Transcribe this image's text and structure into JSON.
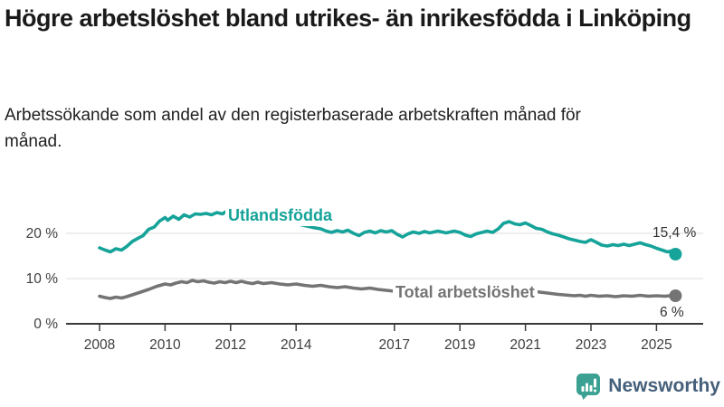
{
  "title": "Högre arbetslöshet bland utrikes- än inrikesfödda i Linköping",
  "subtitle": "Arbetssökande som andel av den registerbaserade arbetskraften månad för månad.",
  "branding": {
    "logo_text": "Newsworthy",
    "logo_icon": "bar-chart-speech-bubble-icon"
  },
  "colors": {
    "foreign_born_line": "#16a399",
    "total_line": "#747474",
    "grid": "#dcdcdc",
    "axis": "#3a3a3a",
    "tick_text": "#3d3d3d",
    "end_label_text": "#333333",
    "logo_teal": "#3ba193",
    "logo_text_color": "#45607b"
  },
  "chart_data": {
    "type": "line",
    "title": "Högre arbetslöshet bland utrikes- än inrikesfödda i Linköping",
    "xlabel": "",
    "ylabel": "",
    "grid": "horizontal",
    "legend_position": "inline-labels",
    "x_axis": {
      "ticks": [
        2008,
        2010,
        2012,
        2014,
        2017,
        2019,
        2021,
        2023,
        2025
      ],
      "range": [
        2007,
        2026.4
      ]
    },
    "y_axis": {
      "values": [
        0,
        10,
        20
      ],
      "labels": [
        "0 %",
        "10 %",
        "20 %"
      ],
      "range": [
        0,
        30
      ]
    },
    "series": [
      {
        "name": "Utlandsfödda",
        "color": "#16a399",
        "end_label": "15,4 %",
        "end_value": 15.4,
        "points": [
          [
            2008.0,
            16.8
          ],
          [
            2008.17,
            16.3
          ],
          [
            2008.33,
            15.9
          ],
          [
            2008.5,
            16.6
          ],
          [
            2008.67,
            16.3
          ],
          [
            2008.83,
            17.1
          ],
          [
            2009.0,
            18.2
          ],
          [
            2009.17,
            18.9
          ],
          [
            2009.33,
            19.5
          ],
          [
            2009.5,
            20.9
          ],
          [
            2009.67,
            21.4
          ],
          [
            2009.83,
            22.7
          ],
          [
            2010.0,
            23.5
          ],
          [
            2010.08,
            22.9
          ],
          [
            2010.25,
            23.8
          ],
          [
            2010.42,
            23.1
          ],
          [
            2010.58,
            24.1
          ],
          [
            2010.75,
            23.6
          ],
          [
            2010.92,
            24.3
          ],
          [
            2011.08,
            24.2
          ],
          [
            2011.25,
            24.4
          ],
          [
            2011.42,
            24.1
          ],
          [
            2011.58,
            24.6
          ],
          [
            2011.75,
            24.3
          ],
          [
            2011.92,
            25.1
          ],
          [
            2012.08,
            25.6
          ],
          [
            2012.25,
            25.3
          ],
          [
            2012.42,
            26.1
          ],
          [
            2012.58,
            25.7
          ],
          [
            2012.83,
            25.2
          ],
          [
            2013.08,
            24.5
          ],
          [
            2013.33,
            23.8
          ],
          [
            2013.58,
            23.1
          ],
          [
            2013.83,
            22.5
          ],
          [
            2014.08,
            22.0
          ],
          [
            2014.33,
            21.6
          ],
          [
            2014.58,
            21.2
          ],
          [
            2014.75,
            21.0
          ],
          [
            2014.92,
            20.5
          ],
          [
            2015.08,
            20.2
          ],
          [
            2015.25,
            20.6
          ],
          [
            2015.42,
            20.3
          ],
          [
            2015.58,
            20.7
          ],
          [
            2015.75,
            20.0
          ],
          [
            2015.92,
            19.5
          ],
          [
            2016.08,
            20.2
          ],
          [
            2016.25,
            20.5
          ],
          [
            2016.42,
            20.1
          ],
          [
            2016.58,
            20.6
          ],
          [
            2016.75,
            20.3
          ],
          [
            2016.92,
            20.6
          ],
          [
            2017.08,
            19.8
          ],
          [
            2017.25,
            19.2
          ],
          [
            2017.42,
            19.9
          ],
          [
            2017.58,
            20.3
          ],
          [
            2017.75,
            20.0
          ],
          [
            2017.92,
            20.4
          ],
          [
            2018.08,
            20.1
          ],
          [
            2018.33,
            20.5
          ],
          [
            2018.58,
            20.1
          ],
          [
            2018.83,
            20.5
          ],
          [
            2019.0,
            20.2
          ],
          [
            2019.17,
            19.6
          ],
          [
            2019.33,
            19.3
          ],
          [
            2019.5,
            19.9
          ],
          [
            2019.67,
            20.2
          ],
          [
            2019.83,
            20.5
          ],
          [
            2020.0,
            20.2
          ],
          [
            2020.17,
            21.0
          ],
          [
            2020.33,
            22.2
          ],
          [
            2020.5,
            22.6
          ],
          [
            2020.67,
            22.1
          ],
          [
            2020.83,
            21.9
          ],
          [
            2021.0,
            22.3
          ],
          [
            2021.17,
            21.7
          ],
          [
            2021.33,
            21.1
          ],
          [
            2021.5,
            20.9
          ],
          [
            2021.67,
            20.3
          ],
          [
            2021.83,
            19.9
          ],
          [
            2022.0,
            19.6
          ],
          [
            2022.17,
            19.2
          ],
          [
            2022.33,
            18.8
          ],
          [
            2022.5,
            18.5
          ],
          [
            2022.67,
            18.2
          ],
          [
            2022.83,
            18.0
          ],
          [
            2023.0,
            18.6
          ],
          [
            2023.17,
            18.0
          ],
          [
            2023.33,
            17.4
          ],
          [
            2023.5,
            17.2
          ],
          [
            2023.67,
            17.5
          ],
          [
            2023.83,
            17.3
          ],
          [
            2024.0,
            17.6
          ],
          [
            2024.17,
            17.3
          ],
          [
            2024.33,
            17.6
          ],
          [
            2024.5,
            17.9
          ],
          [
            2024.67,
            17.5
          ],
          [
            2024.83,
            17.2
          ],
          [
            2025.0,
            16.7
          ],
          [
            2025.17,
            16.3
          ],
          [
            2025.33,
            15.9
          ],
          [
            2025.45,
            16.1
          ],
          [
            2025.58,
            15.4
          ]
        ]
      },
      {
        "name": "Total arbetslöshet",
        "color": "#747474",
        "end_label": "6 %",
        "end_value": 6,
        "points": [
          [
            2008.0,
            6.1
          ],
          [
            2008.17,
            5.8
          ],
          [
            2008.33,
            5.6
          ],
          [
            2008.5,
            5.9
          ],
          [
            2008.67,
            5.7
          ],
          [
            2008.83,
            6.0
          ],
          [
            2009.0,
            6.4
          ],
          [
            2009.25,
            7.0
          ],
          [
            2009.5,
            7.6
          ],
          [
            2009.75,
            8.3
          ],
          [
            2010.0,
            8.8
          ],
          [
            2010.17,
            8.6
          ],
          [
            2010.33,
            9.0
          ],
          [
            2010.5,
            9.3
          ],
          [
            2010.67,
            9.1
          ],
          [
            2010.83,
            9.6
          ],
          [
            2011.0,
            9.3
          ],
          [
            2011.17,
            9.5
          ],
          [
            2011.33,
            9.2
          ],
          [
            2011.5,
            9.0
          ],
          [
            2011.67,
            9.3
          ],
          [
            2011.83,
            9.1
          ],
          [
            2012.0,
            9.4
          ],
          [
            2012.17,
            9.1
          ],
          [
            2012.33,
            9.4
          ],
          [
            2012.5,
            9.1
          ],
          [
            2012.67,
            8.9
          ],
          [
            2012.83,
            9.2
          ],
          [
            2013.0,
            8.9
          ],
          [
            2013.25,
            9.1
          ],
          [
            2013.5,
            8.8
          ],
          [
            2013.75,
            8.6
          ],
          [
            2014.0,
            8.8
          ],
          [
            2014.25,
            8.5
          ],
          [
            2014.5,
            8.3
          ],
          [
            2014.75,
            8.5
          ],
          [
            2015.0,
            8.2
          ],
          [
            2015.25,
            8.0
          ],
          [
            2015.5,
            8.2
          ],
          [
            2015.75,
            7.9
          ],
          [
            2016.0,
            7.7
          ],
          [
            2016.25,
            7.9
          ],
          [
            2016.5,
            7.6
          ],
          [
            2016.75,
            7.4
          ],
          [
            2017.0,
            7.2
          ],
          [
            2017.5,
            7.0
          ],
          [
            2018.0,
            6.8
          ],
          [
            2018.5,
            6.6
          ],
          [
            2019.0,
            6.5
          ],
          [
            2019.5,
            6.4
          ],
          [
            2020.0,
            6.8
          ],
          [
            2020.33,
            7.9
          ],
          [
            2020.67,
            7.8
          ],
          [
            2021.0,
            7.5
          ],
          [
            2021.33,
            7.1
          ],
          [
            2021.67,
            6.8
          ],
          [
            2022.0,
            6.5
          ],
          [
            2022.33,
            6.3
          ],
          [
            2022.5,
            6.2
          ],
          [
            2022.67,
            6.3
          ],
          [
            2022.83,
            6.1
          ],
          [
            2023.0,
            6.3
          ],
          [
            2023.25,
            6.1
          ],
          [
            2023.5,
            6.2
          ],
          [
            2023.75,
            6.0
          ],
          [
            2024.0,
            6.2
          ],
          [
            2024.25,
            6.1
          ],
          [
            2024.5,
            6.3
          ],
          [
            2024.75,
            6.1
          ],
          [
            2025.0,
            6.2
          ],
          [
            2025.25,
            6.1
          ],
          [
            2025.42,
            6.2
          ],
          [
            2025.58,
            6.2
          ]
        ]
      }
    ]
  }
}
